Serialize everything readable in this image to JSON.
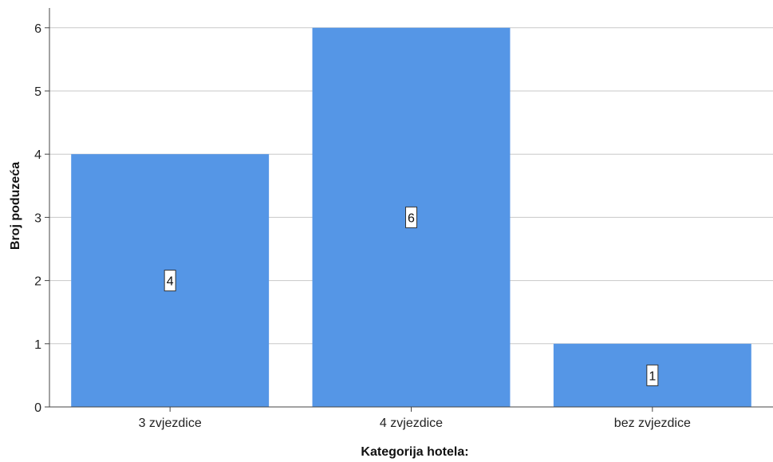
{
  "chart_data": {
    "type": "bar",
    "categories": [
      "3 zvjezdice",
      "4 zvjezdice",
      "bez zvjezdice"
    ],
    "values": [
      4,
      6,
      1
    ],
    "data_labels": [
      "4",
      "6",
      "1"
    ],
    "title": "",
    "xlabel": "Kategorija hotela:",
    "ylabel": "Broj poduzeća",
    "ylim": [
      0,
      6.3
    ],
    "yticks": [
      0,
      1,
      2,
      3,
      4,
      5,
      6
    ],
    "grid": true,
    "colors": {
      "bar": "#5596e6",
      "grid": "#c8c8c8",
      "axis": "#444444",
      "label_box_fill": "#ffffff",
      "label_box_stroke": "#333333"
    }
  }
}
